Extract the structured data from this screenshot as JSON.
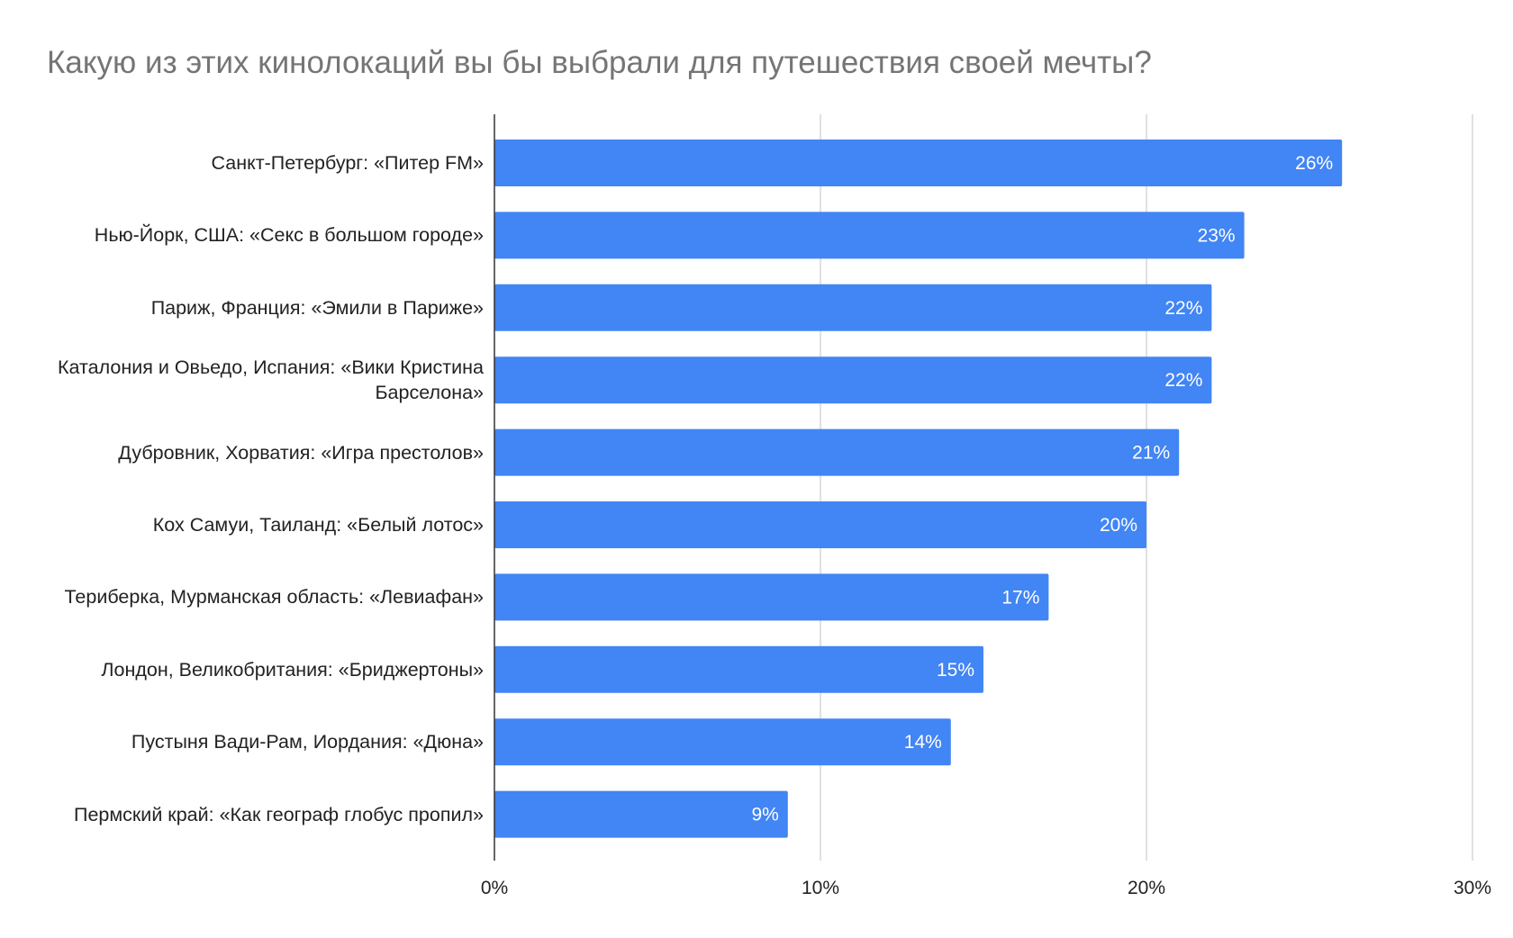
{
  "chart_data": {
    "type": "bar",
    "orientation": "horizontal",
    "title": "Какую из этих кинолокаций вы бы выбрали для путешествия своей мечты?",
    "categories": [
      "Санкт-Петербург: «Питер FM»",
      "Нью-Йорк, США: «Секс в большом городе»",
      "Париж, Франция: «Эмили в Париже»",
      "Каталония и Овьедо, Испания: «Вики Кристина Барселона»",
      "Дубровник, Хорватия: «Игра престолов»",
      "Кох Самуи, Таиланд: «Белый лотос»",
      "Териберка, Мурманская область: «Левиафан»",
      "Лондон, Великобритания: «Бриджертоны»",
      "Пустыня Вади-Рам, Иордания: «Дюна»",
      "Пермский край: «Как географ глобус пропил»"
    ],
    "values": [
      26,
      23,
      22,
      22,
      21,
      20,
      17,
      15,
      14,
      9
    ],
    "data_labels": [
      "26%",
      "23%",
      "22%",
      "22%",
      "21%",
      "20%",
      "17%",
      "15%",
      "14%",
      "9%"
    ],
    "xlim": [
      0,
      30
    ],
    "x_ticks": [
      0,
      10,
      20,
      30
    ],
    "x_tick_labels": [
      "0%",
      "10%",
      "20%",
      "30%"
    ],
    "grid": true,
    "bar_color": "#4285f4",
    "legend": "none"
  }
}
